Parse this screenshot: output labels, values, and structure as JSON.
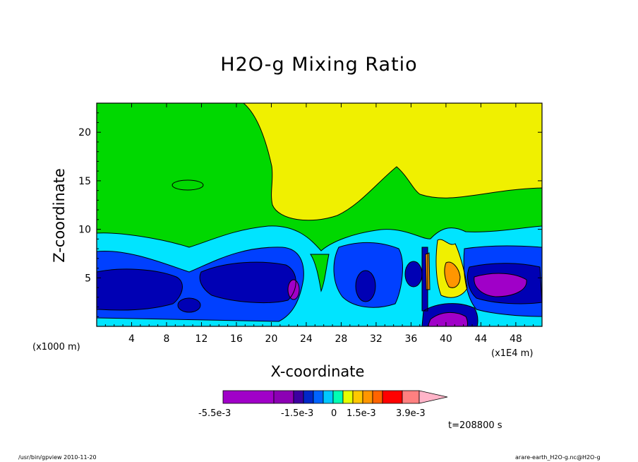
{
  "chart_data": {
    "type": "heatmap",
    "title": "H2O-g Mixing Ratio",
    "xlabel": "X-coordinate",
    "ylabel": "Z-coordinate",
    "x_unit_left": "(x1000 m)",
    "x_unit_right": "(x1E4 m)",
    "xlim": [
      0,
      51
    ],
    "ylim": [
      0,
      23
    ],
    "x_ticks": [
      4,
      8,
      12,
      16,
      20,
      24,
      28,
      32,
      36,
      40,
      44,
      48
    ],
    "y_ticks": [
      5,
      10,
      15,
      20
    ],
    "time_label": "t=208800 s",
    "colorbar": {
      "colors": [
        "#a000c8",
        "#a000c8",
        "#a000c8",
        "#8c00b4",
        "#3c00a0",
        "#0028c8",
        "#0064ff",
        "#00c8ff",
        "#00ffb4",
        "#e6ff00",
        "#ffc800",
        "#ff9600",
        "#ff6400",
        "#ff0000",
        "#ff8080"
      ],
      "extend_color": "#ffb4c8",
      "labels": [
        "-5.5e-3",
        "-1.5e-3",
        "0",
        "1.5e-3",
        "3.9e-3"
      ]
    },
    "contour_regions": [
      {
        "level": "high",
        "color": "#f0f000"
      },
      {
        "level": "upper-mid",
        "color": "#00d800"
      },
      {
        "level": "mid",
        "color": "#00e4ff"
      },
      {
        "level": "low",
        "color": "#0040ff"
      },
      {
        "level": "lower",
        "color": "#0000b4"
      },
      {
        "level": "minimum",
        "color": "#a000c8"
      },
      {
        "level": "positive-peak",
        "color": "#ff9600"
      }
    ]
  },
  "footer": {
    "left": "/usr/bin/gpview 2010-11-20",
    "right": "arare-earth_H2O-g.nc@H2O-g"
  }
}
